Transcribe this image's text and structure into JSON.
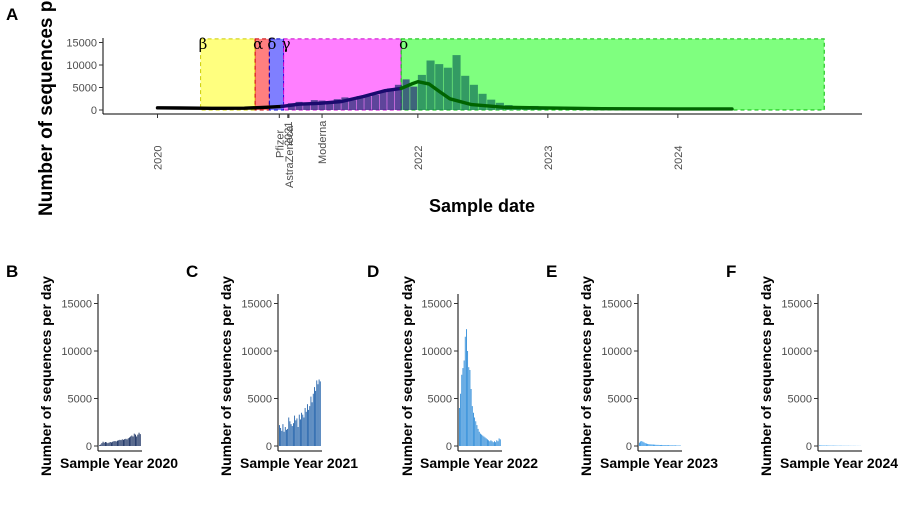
{
  "chart_data": [
    {
      "panel": "A",
      "type": "area",
      "xlabel": "Sample date",
      "ylabel": "Number of sequences per day",
      "ylim": [
        0,
        16000
      ],
      "yticks": [
        0,
        5000,
        10000,
        15000
      ],
      "xlim": [
        "2019-08-01",
        "2025-06-01"
      ],
      "xtick_labels": [
        "2020",
        "2022",
        "2023",
        "2024"
      ],
      "xtick_dates": [
        "2020-01-01",
        "2022-01-01",
        "2023-01-01",
        "2024-01-01"
      ],
      "vaccine_labels": [
        "Pfizer",
        "2021",
        "AstraZeneca",
        "Moderna"
      ],
      "vaccine_dates": [
        "2020-12-08",
        "2021-01-01",
        "2021-01-04",
        "2021-04-07"
      ],
      "variant_periods": [
        {
          "label": "β",
          "start": "2020-05-01",
          "end": "2020-10-01",
          "color": "#ffff00",
          "border": "#cccc00"
        },
        {
          "label": "α",
          "start": "2020-10-01",
          "end": "2020-11-10",
          "color": "#ff0000",
          "border": "#cc0000"
        },
        {
          "label": "δ",
          "start": "2020-11-10",
          "end": "2020-12-20",
          "color": "#0000ff",
          "border": "#0000cc"
        },
        {
          "label": "γ",
          "start": "2020-12-20",
          "end": "2021-11-15",
          "color": "#ff00ff",
          "border": "#cc00cc"
        },
        {
          "label": "ο",
          "start": "2021-11-15",
          "end": "2025-02-15",
          "color": "#00ff00",
          "border": "#00bb00"
        }
      ],
      "smooth_segments": [
        {
          "color": "#000000",
          "points": [
            [
              "2020-01-01",
              500
            ],
            [
              "2020-03-01",
              450
            ],
            [
              "2020-06-01",
              380
            ],
            [
              "2020-09-01",
              400
            ],
            [
              "2020-11-01",
              600
            ],
            [
              "2020-12-15",
              800
            ]
          ]
        },
        {
          "color": "#1a0a6e",
          "points": [
            [
              "2020-12-15",
              800
            ],
            [
              "2021-02-01",
              1300
            ],
            [
              "2021-04-01",
              1500
            ],
            [
              "2021-06-01",
              1900
            ],
            [
              "2021-08-01",
              3000
            ],
            [
              "2021-10-01",
              4300
            ],
            [
              "2021-11-15",
              4800
            ]
          ]
        },
        {
          "color": "#006400",
          "points": [
            [
              "2021-11-15",
              4800
            ],
            [
              "2021-12-15",
              5800
            ],
            [
              "2022-01-01",
              6300
            ],
            [
              "2022-02-01",
              5800
            ],
            [
              "2022-03-01",
              4200
            ],
            [
              "2022-04-01",
              2500
            ],
            [
              "2022-06-01",
              1200
            ],
            [
              "2022-09-01",
              600
            ],
            [
              "2022-12-01",
              500
            ],
            [
              "2023-06-01",
              300
            ],
            [
              "2024-01-01",
              250
            ],
            [
              "2024-06-01",
              250
            ]
          ]
        }
      ],
      "daily_series": [
        {
          "name": "",
          "year": 2021,
          "color": "#28327a",
          "values": [
            1500,
            1800,
            1600,
            2200,
            2100,
            1700,
            2400,
            2800,
            2200,
            3100,
            3000,
            3400,
            4200,
            4800,
            5600,
            6800,
            5200
          ]
        },
        {
          "name": "",
          "year": 2022,
          "color": "#1a7a5a",
          "values": [
            7800,
            11000,
            10200,
            9400,
            12200,
            7600,
            5600,
            3600,
            2300,
            1600,
            1100,
            800,
            800,
            900,
            600
          ]
        }
      ]
    },
    {
      "panel": "B",
      "type": "bar",
      "xlabel": "Sample Year 2020",
      "ylabel": "Number of sequences per day",
      "ylim": [
        0,
        16000
      ],
      "yticks": [
        0,
        5000,
        10000,
        15000
      ],
      "color": "#132b5e",
      "values": [
        80,
        150,
        300,
        450,
        350,
        420,
        380,
        300,
        360,
        420,
        380,
        450,
        500,
        520,
        480,
        560,
        600,
        650,
        620,
        700,
        650,
        720,
        760,
        700,
        820,
        900,
        1000,
        1100,
        1000,
        1300,
        1200,
        1000,
        1200,
        1400,
        1250
      ]
    },
    {
      "panel": "C",
      "type": "bar",
      "xlabel": "Sample Year 2021",
      "ylabel": "Number of sequences per day",
      "ylim": [
        0,
        16000
      ],
      "yticks": [
        0,
        5000,
        10000,
        15000
      ],
      "color": "#1d5ea8",
      "values": [
        2200,
        1900,
        1600,
        2300,
        1500,
        2000,
        1700,
        1800,
        3000,
        2600,
        2300,
        2100,
        2400,
        3200,
        2700,
        2900,
        2000,
        3300,
        2800,
        3500,
        3300,
        3000,
        4000,
        3600,
        4400,
        3800,
        4200,
        5200,
        4600,
        5500,
        6200,
        5800,
        6900,
        6500,
        7000,
        6800
      ]
    },
    {
      "panel": "D",
      "type": "bar",
      "xlabel": "Sample Year 2022",
      "ylabel": "Number of sequences per day",
      "ylim": [
        0,
        16000
      ],
      "yticks": [
        0,
        5000,
        10000,
        15000
      ],
      "color": "#2b8ad8",
      "values": [
        4000,
        5500,
        7500,
        8200,
        9000,
        11500,
        12300,
        10000,
        8300,
        8000,
        6000,
        4200,
        3500,
        3000,
        2600,
        2200,
        1800,
        1500,
        1300,
        1200,
        1100,
        1000,
        900,
        800,
        700,
        600,
        500,
        600,
        500,
        400,
        500,
        400,
        600,
        500,
        800,
        700
      ]
    },
    {
      "panel": "E",
      "type": "bar",
      "xlabel": "Sample Year 2023",
      "ylabel": "Number of sequences per day",
      "ylim": [
        0,
        16000
      ],
      "yticks": [
        0,
        5000,
        10000,
        15000
      ],
      "color": "#3096e8",
      "values": [
        350,
        480,
        520,
        450,
        380,
        300,
        260,
        220,
        200,
        180,
        170,
        160,
        150,
        140,
        130,
        120,
        120,
        110,
        100,
        110,
        100,
        90,
        100,
        90,
        80,
        90,
        80,
        70,
        80,
        70,
        60,
        70,
        60,
        50,
        60,
        50
      ]
    },
    {
      "panel": "F",
      "type": "bar",
      "xlabel": "Sample Year 2024",
      "ylabel": "Number of sequences per day",
      "ylim": [
        0,
        16000
      ],
      "yticks": [
        0,
        5000,
        10000,
        15000
      ],
      "color": "#38a0f2",
      "values": [
        70,
        60,
        65,
        55,
        60,
        50,
        55,
        45,
        50,
        45,
        40,
        45,
        40,
        35,
        40,
        35,
        30,
        35,
        30,
        30,
        25,
        30,
        25,
        25,
        20,
        25,
        20,
        20,
        15,
        20,
        15,
        15,
        10,
        15,
        10,
        10
      ]
    }
  ]
}
